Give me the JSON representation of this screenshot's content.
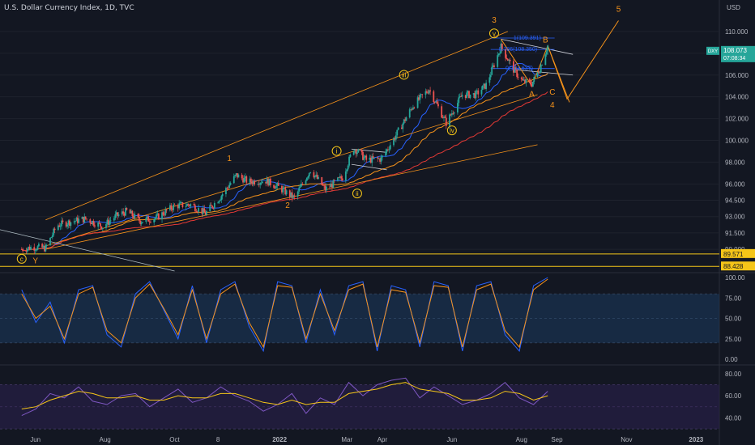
{
  "header": {
    "title": "U.S. Dollar Currency Index, 1D, TVC",
    "currency": "USD"
  },
  "colors": {
    "background": "#131722",
    "up": "#26a69a",
    "down": "#ef5350",
    "wave": "#f7931a",
    "yellow": "#f5c518",
    "stoch_k": "#2962ff",
    "stoch_d": "#f7931a",
    "rsi": "#7e57c2",
    "rsi_ma": "#f5c518"
  },
  "chart_data": [
    {
      "type": "candlestick",
      "title": "U.S. Dollar Currency Index, 1D, TVC",
      "ylim": [
        88.0,
        112.0
      ],
      "y_tick_labels": [
        "110.000",
        "108.000",
        "106.000",
        "104.000",
        "102.000",
        "100.000",
        "98.000",
        "96.000",
        "94.500",
        "93.000",
        "91.500",
        "90.000"
      ],
      "y_ticks": [
        110,
        108,
        106,
        104,
        102,
        100,
        98,
        96,
        94.5,
        93,
        91.5,
        90
      ],
      "x_tick_labels": [
        "Jun",
        "Aug",
        "Oct",
        "8",
        "2022",
        "Mar",
        "Apr",
        "Jun",
        "Aug",
        "Sep",
        "Nov",
        "2023"
      ],
      "price_tags": [
        {
          "label": "DXY",
          "value": "108.073",
          "sub": "07:08:34"
        },
        {
          "label": "",
          "value": "89.571"
        },
        {
          "label": "",
          "value": "88.428"
        }
      ],
      "horizontal_levels": [
        89.571,
        88.428
      ],
      "close_path": [
        [
          "2021-05-20",
          90.0
        ],
        [
          "2021-05-30",
          90.2
        ],
        [
          "2021-06-10",
          90.1
        ],
        [
          "2021-06-20",
          92.2
        ],
        [
          "2021-07-01",
          92.5
        ],
        [
          "2021-07-15",
          92.8
        ],
        [
          "2021-07-30",
          92.1
        ],
        [
          "2021-08-10",
          93.0
        ],
        [
          "2021-08-20",
          93.5
        ],
        [
          "2021-09-01",
          92.6
        ],
        [
          "2021-09-15",
          92.9
        ],
        [
          "2021-10-01",
          94.0
        ],
        [
          "2021-10-15",
          94.1
        ],
        [
          "2021-10-28",
          93.3
        ],
        [
          "2021-11-10",
          94.8
        ],
        [
          "2021-11-24",
          96.8
        ],
        [
          "2021-12-05",
          96.2
        ],
        [
          "2021-12-20",
          96.3
        ],
        [
          "2021-12-31",
          95.7
        ],
        [
          "2022-01-14",
          94.7
        ],
        [
          "2022-01-28",
          97.3
        ],
        [
          "2022-02-10",
          95.5
        ],
        [
          "2022-02-25",
          96.6
        ],
        [
          "2022-03-07",
          99.3
        ],
        [
          "2022-03-18",
          98.2
        ],
        [
          "2022-03-31",
          98.3
        ],
        [
          "2022-04-12",
          100.3
        ],
        [
          "2022-04-28",
          103.2
        ],
        [
          "2022-05-12",
          104.7
        ],
        [
          "2022-05-27",
          101.6
        ],
        [
          "2022-06-10",
          104.2
        ],
        [
          "2022-06-22",
          104.2
        ],
        [
          "2022-07-01",
          105.1
        ],
        [
          "2022-07-14",
          108.6
        ],
        [
          "2022-07-25",
          106.5
        ],
        [
          "2022-08-02",
          105.4
        ],
        [
          "2022-08-10",
          105.2
        ],
        [
          "2022-08-17",
          106.6
        ],
        [
          "2022-08-24",
          108.7
        ]
      ],
      "annotations": {
        "wave_labels_orange": [
          "1",
          "2",
          "3",
          "4",
          "5",
          "A",
          "B",
          "C",
          "Y"
        ],
        "wave_labels_circled": [
          "c",
          "i",
          "ii",
          "iii",
          "iv",
          "v"
        ],
        "fib_labels": [
          "1(109.391)",
          "0.786(108.350)",
          "0(104.637)"
        ]
      }
    },
    {
      "type": "line",
      "title": "",
      "ylim": [
        0,
        100
      ],
      "y_tick_labels": [
        "100.00",
        "75.00",
        "50.00",
        "25.00",
        "0.00"
      ],
      "y_ticks": [
        100,
        75,
        50,
        25,
        0
      ],
      "band": [
        20,
        80
      ],
      "series": [
        {
          "values": [
            85,
            45,
            70,
            20,
            85,
            90,
            30,
            15,
            80,
            95,
            60,
            25,
            90,
            20,
            85,
            95,
            40,
            10,
            95,
            90,
            20,
            85,
            30,
            90,
            95,
            10,
            90,
            85,
            15,
            95,
            90,
            10,
            90,
            95,
            30,
            10,
            90,
            100
          ]
        },
        {
          "values": [
            80,
            50,
            65,
            25,
            80,
            88,
            35,
            20,
            75,
            92,
            62,
            30,
            85,
            25,
            80,
            92,
            45,
            15,
            90,
            88,
            25,
            80,
            35,
            85,
            92,
            15,
            85,
            82,
            20,
            90,
            88,
            15,
            85,
            92,
            35,
            15,
            85,
            98
          ]
        }
      ]
    },
    {
      "type": "line",
      "title": "",
      "ylim": [
        30,
        85
      ],
      "y_tick_labels": [
        "80.00",
        "60.00",
        "40.00"
      ],
      "y_ticks": [
        80,
        60,
        40
      ],
      "band": [
        30,
        70
      ],
      "series": [
        {
          "values": [
            42,
            48,
            62,
            58,
            68,
            55,
            52,
            60,
            62,
            50,
            58,
            66,
            54,
            58,
            68,
            60,
            55,
            46,
            52,
            62,
            44,
            58,
            52,
            72,
            60,
            70,
            74,
            76,
            58,
            68,
            60,
            52,
            56,
            62,
            72,
            58,
            52,
            64
          ]
        },
        {
          "values": [
            48,
            50,
            56,
            60,
            64,
            62,
            58,
            58,
            60,
            56,
            56,
            60,
            58,
            58,
            62,
            62,
            58,
            54,
            52,
            56,
            52,
            54,
            54,
            62,
            64,
            66,
            70,
            72,
            66,
            64,
            62,
            56,
            56,
            58,
            64,
            62,
            56,
            60
          ]
        }
      ]
    }
  ]
}
